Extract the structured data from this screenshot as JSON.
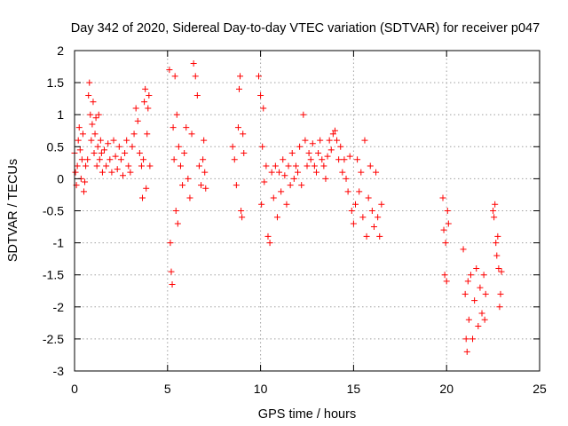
{
  "chart_data": {
    "type": "scatter",
    "title": "Day 342 of 2020, Sidereal Day-to-day VTEC variation (SDTVAR) for receiver p047",
    "xlabel": "GPS time / hours",
    "ylabel": "SDTVAR / TECUs",
    "xlim": [
      0,
      25
    ],
    "ylim": [
      -3,
      2
    ],
    "xticks": [
      0,
      5,
      10,
      15,
      20,
      25
    ],
    "xtick_labels": [
      "0",
      "5",
      "10",
      "15",
      "20",
      "25"
    ],
    "yticks": [
      2,
      1.5,
      1,
      0.5,
      0,
      -0.5,
      -1,
      -1.5,
      -2,
      -2.5,
      -3
    ],
    "ytick_labels": [
      "2",
      "1.5",
      "1",
      "0.5",
      "0",
      "-0.5",
      "-1",
      "-1.5",
      "-2",
      "-2.5",
      "-3"
    ],
    "grid": true,
    "marker": "+",
    "color": "#ff0000",
    "series": [
      {
        "name": "SDTVAR",
        "points": [
          [
            0.0,
            0.4
          ],
          [
            0.05,
            0.1
          ],
          [
            0.1,
            -0.1
          ],
          [
            0.15,
            0.2
          ],
          [
            0.2,
            0.6
          ],
          [
            0.25,
            0.8
          ],
          [
            0.3,
            0.45
          ],
          [
            0.35,
            0.0
          ],
          [
            0.4,
            0.3
          ],
          [
            0.45,
            0.7
          ],
          [
            0.5,
            -0.2
          ],
          [
            0.55,
            -0.05
          ],
          [
            0.6,
            0.2
          ],
          [
            0.7,
            0.3
          ],
          [
            0.75,
            1.3
          ],
          [
            0.8,
            1.5
          ],
          [
            0.85,
            1.0
          ],
          [
            0.9,
            0.6
          ],
          [
            0.95,
            0.85
          ],
          [
            1.0,
            1.2
          ],
          [
            1.05,
            0.4
          ],
          [
            1.1,
            0.7
          ],
          [
            1.15,
            0.95
          ],
          [
            1.2,
            0.2
          ],
          [
            1.25,
            0.5
          ],
          [
            1.3,
            1.0
          ],
          [
            1.35,
            0.3
          ],
          [
            1.4,
            0.6
          ],
          [
            1.45,
            0.4
          ],
          [
            1.5,
            0.1
          ],
          [
            1.6,
            0.45
          ],
          [
            1.7,
            0.2
          ],
          [
            1.8,
            0.55
          ],
          [
            1.9,
            0.3
          ],
          [
            2.0,
            0.1
          ],
          [
            2.1,
            0.6
          ],
          [
            2.2,
            0.35
          ],
          [
            2.3,
            0.15
          ],
          [
            2.4,
            0.5
          ],
          [
            2.5,
            0.3
          ],
          [
            2.6,
            0.05
          ],
          [
            2.7,
            0.4
          ],
          [
            2.8,
            0.6
          ],
          [
            2.9,
            0.2
          ],
          [
            3.0,
            0.1
          ],
          [
            3.1,
            0.5
          ],
          [
            3.2,
            0.7
          ],
          [
            3.3,
            1.1
          ],
          [
            3.4,
            0.9
          ],
          [
            3.5,
            0.4
          ],
          [
            3.6,
            0.2
          ],
          [
            3.65,
            -0.3
          ],
          [
            3.7,
            0.3
          ],
          [
            3.75,
            1.2
          ],
          [
            3.8,
            1.4
          ],
          [
            3.85,
            -0.15
          ],
          [
            3.9,
            0.7
          ],
          [
            3.95,
            1.1
          ],
          [
            4.0,
            1.3
          ],
          [
            4.05,
            0.2
          ],
          [
            5.1,
            1.7
          ],
          [
            5.15,
            -1.0
          ],
          [
            5.2,
            -1.45
          ],
          [
            5.25,
            -1.65
          ],
          [
            5.3,
            0.8
          ],
          [
            5.35,
            0.3
          ],
          [
            5.4,
            1.6
          ],
          [
            5.45,
            -0.5
          ],
          [
            5.5,
            1.0
          ],
          [
            5.55,
            -0.7
          ],
          [
            5.6,
            0.5
          ],
          [
            5.7,
            0.2
          ],
          [
            5.8,
            -0.1
          ],
          [
            5.9,
            0.4
          ],
          [
            6.0,
            0.8
          ],
          [
            6.1,
            0.0
          ],
          [
            6.2,
            -0.3
          ],
          [
            6.3,
            0.7
          ],
          [
            6.4,
            1.8
          ],
          [
            6.5,
            1.6
          ],
          [
            6.6,
            1.3
          ],
          [
            6.7,
            0.2
          ],
          [
            6.8,
            -0.1
          ],
          [
            6.9,
            0.3
          ],
          [
            6.95,
            0.6
          ],
          [
            7.0,
            0.1
          ],
          [
            7.05,
            -0.15
          ],
          [
            8.5,
            0.5
          ],
          [
            8.6,
            0.3
          ],
          [
            8.7,
            -0.1
          ],
          [
            8.8,
            0.8
          ],
          [
            8.85,
            1.4
          ],
          [
            8.9,
            1.6
          ],
          [
            8.95,
            -0.5
          ],
          [
            9.0,
            -0.6
          ],
          [
            9.05,
            0.7
          ],
          [
            9.1,
            0.4
          ],
          [
            9.9,
            1.6
          ],
          [
            10.0,
            1.3
          ],
          [
            10.05,
            -0.4
          ],
          [
            10.1,
            0.5
          ],
          [
            10.15,
            1.1
          ],
          [
            10.2,
            -0.05
          ],
          [
            10.3,
            0.2
          ],
          [
            10.4,
            -0.9
          ],
          [
            10.5,
            -1.0
          ],
          [
            10.6,
            0.1
          ],
          [
            10.7,
            -0.3
          ],
          [
            10.8,
            0.2
          ],
          [
            10.9,
            -0.6
          ],
          [
            11.0,
            0.1
          ],
          [
            11.1,
            -0.2
          ],
          [
            11.2,
            0.3
          ],
          [
            11.3,
            0.05
          ],
          [
            11.4,
            -0.4
          ],
          [
            11.5,
            0.2
          ],
          [
            11.6,
            -0.1
          ],
          [
            11.7,
            0.4
          ],
          [
            11.8,
            0.0
          ],
          [
            11.9,
            0.2
          ],
          [
            12.0,
            0.1
          ],
          [
            12.1,
            0.5
          ],
          [
            12.2,
            -0.1
          ],
          [
            12.3,
            1.0
          ],
          [
            12.4,
            0.6
          ],
          [
            12.5,
            0.2
          ],
          [
            12.6,
            0.4
          ],
          [
            12.7,
            0.3
          ],
          [
            12.8,
            0.55
          ],
          [
            12.9,
            0.2
          ],
          [
            13.0,
            0.1
          ],
          [
            13.1,
            0.4
          ],
          [
            13.2,
            0.6
          ],
          [
            13.3,
            0.3
          ],
          [
            13.4,
            0.2
          ],
          [
            13.5,
            0.0
          ],
          [
            13.6,
            0.35
          ],
          [
            13.7,
            0.6
          ],
          [
            13.8,
            0.45
          ],
          [
            13.9,
            0.7
          ],
          [
            14.0,
            0.75
          ],
          [
            14.1,
            0.6
          ],
          [
            14.2,
            0.3
          ],
          [
            14.3,
            0.5
          ],
          [
            14.4,
            0.1
          ],
          [
            14.5,
            0.3
          ],
          [
            14.6,
            0.0
          ],
          [
            14.7,
            -0.2
          ],
          [
            14.8,
            0.35
          ],
          [
            14.9,
            -0.5
          ],
          [
            15.0,
            -0.7
          ],
          [
            15.1,
            -0.4
          ],
          [
            15.2,
            0.3
          ],
          [
            15.3,
            -0.2
          ],
          [
            15.4,
            0.1
          ],
          [
            15.5,
            -0.6
          ],
          [
            15.6,
            0.6
          ],
          [
            15.7,
            -0.9
          ],
          [
            15.8,
            -0.3
          ],
          [
            15.9,
            0.2
          ],
          [
            16.0,
            -0.5
          ],
          [
            16.1,
            -0.75
          ],
          [
            16.2,
            0.1
          ],
          [
            16.3,
            -0.6
          ],
          [
            16.4,
            -0.9
          ],
          [
            16.5,
            -0.4
          ],
          [
            19.8,
            -0.3
          ],
          [
            19.85,
            -0.8
          ],
          [
            19.9,
            -1.5
          ],
          [
            19.95,
            -1.0
          ],
          [
            20.0,
            -1.6
          ],
          [
            20.05,
            -0.5
          ],
          [
            20.1,
            -0.7
          ],
          [
            20.9,
            -1.1
          ],
          [
            21.0,
            -1.8
          ],
          [
            21.05,
            -2.5
          ],
          [
            21.1,
            -2.7
          ],
          [
            21.15,
            -1.6
          ],
          [
            21.2,
            -2.2
          ],
          [
            21.3,
            -1.5
          ],
          [
            21.4,
            -2.5
          ],
          [
            21.5,
            -1.9
          ],
          [
            21.6,
            -1.4
          ],
          [
            21.7,
            -2.3
          ],
          [
            21.8,
            -1.7
          ],
          [
            21.9,
            -2.1
          ],
          [
            22.0,
            -1.5
          ],
          [
            22.05,
            -2.2
          ],
          [
            22.1,
            -1.8
          ],
          [
            22.5,
            -0.5
          ],
          [
            22.55,
            -0.6
          ],
          [
            22.6,
            -0.4
          ],
          [
            22.65,
            -1.0
          ],
          [
            22.7,
            -1.2
          ],
          [
            22.75,
            -0.9
          ],
          [
            22.8,
            -1.4
          ],
          [
            22.85,
            -2.0
          ],
          [
            22.9,
            -1.8
          ],
          [
            22.95,
            -1.45
          ]
        ]
      }
    ]
  }
}
